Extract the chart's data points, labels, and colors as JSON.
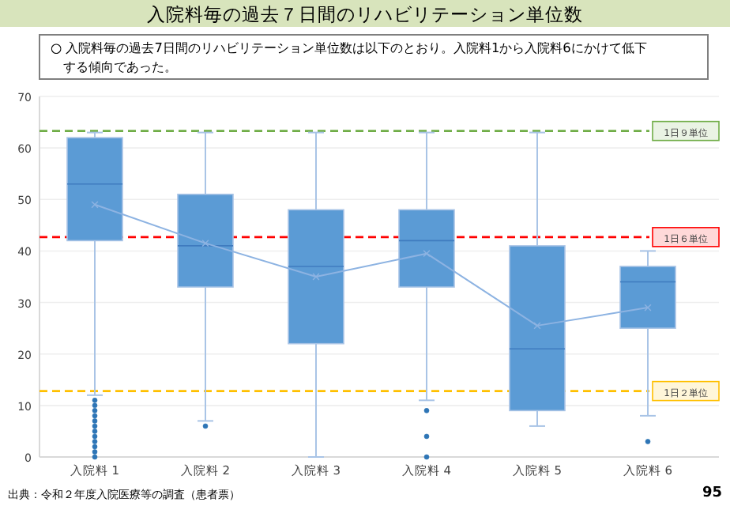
{
  "chart_data": {
    "type": "box",
    "title": "入院料毎の過去７日間のリハビリテーション単位数",
    "subtitle": "○ 入院料毎の過去7日間のリハビリテーション単位数は以下のとおり。入院料1から入院料6にかけて低下する傾向であった。",
    "categories": [
      "入院料 1",
      "入院料 2",
      "入院料 3",
      "入院料 4",
      "入院料 5",
      "入院料 6"
    ],
    "ylim": [
      0,
      70
    ],
    "yticks": [
      0,
      10,
      20,
      30,
      40,
      50,
      60,
      70
    ],
    "grid": "y",
    "color": "#5b9bd5",
    "boxes": [
      {
        "low": 12,
        "q1": 42,
        "median": 53,
        "q3": 62,
        "high": 63,
        "mean": 49,
        "outliers": [
          0,
          1,
          2,
          3,
          4,
          5,
          6,
          7,
          8,
          9,
          10,
          11
        ]
      },
      {
        "low": 7,
        "q1": 33,
        "median": 41,
        "q3": 51,
        "high": 63,
        "mean": 41.5,
        "outliers": [
          6
        ]
      },
      {
        "low": 0,
        "q1": 22,
        "median": 37,
        "q3": 48,
        "high": 63,
        "mean": 35
      },
      {
        "low": 11,
        "q1": 33,
        "median": 42,
        "q3": 48,
        "high": 63,
        "mean": 39.5,
        "outliers": [
          9,
          4,
          0
        ]
      },
      {
        "low": 6,
        "q1": 9,
        "median": 21,
        "q3": 41,
        "high": 63,
        "mean": 25.5
      },
      {
        "low": 8,
        "q1": 25,
        "median": 34,
        "q3": 37,
        "high": 40,
        "mean": 29,
        "outliers": [
          3
        ]
      }
    ],
    "series": [
      {
        "type": "line",
        "color": "#8db3e2",
        "values": [
          49,
          41.5,
          35,
          39.5,
          25.5,
          29
        ]
      }
    ],
    "ref_lines": [
      {
        "axis": "y",
        "value": 63.3,
        "label": "1日９単位",
        "color": "#70ad47",
        "line_style": "dashed"
      },
      {
        "axis": "y",
        "value": 42.7,
        "label": "1日６単位",
        "color": "#ff0000",
        "line_style": "dashed"
      },
      {
        "axis": "y",
        "value": 12.8,
        "label": "1日２単位",
        "color": "#ffc000",
        "line_style": "dashed"
      }
    ],
    "annotations": [
      "出典：令和２年度入院医療等の調査（患者票）",
      "95"
    ]
  }
}
